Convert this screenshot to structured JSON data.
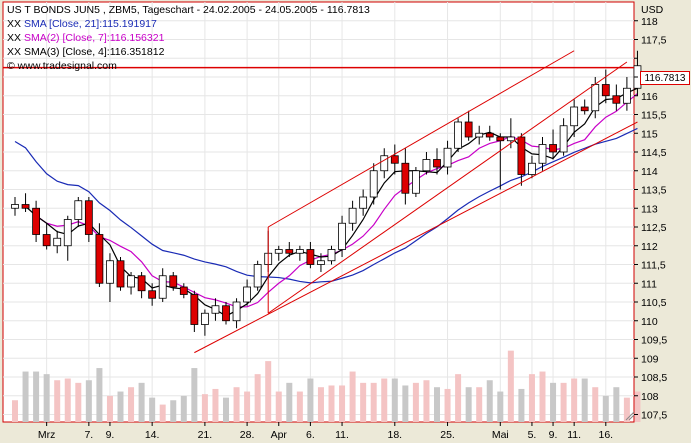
{
  "header": {
    "title": "US T BONDS JUN5 , ZBM5, Tageschart - 24.02.2005 - 24.05.2005 - 116.7813",
    "currency": "USD",
    "last_price": "116.7813",
    "sma_lines": [
      {
        "prefix": "XX",
        "text": "SMA [Close, 21]:115.191917",
        "color": "#1a2bb5"
      },
      {
        "prefix": "XX",
        "text": "SMA(2) [Close, 7]:116.156321",
        "color": "#c800c8"
      },
      {
        "prefix": "XX",
        "text": "SMA(3) [Close, 4]:116.351812",
        "color": "#000000"
      }
    ],
    "source": "www.tradesignal.com"
  },
  "chart_data": {
    "type": "candlestick",
    "ylim": [
      107.3,
      118.5
    ],
    "y_ticks": [
      107.5,
      108,
      108.5,
      109,
      109.5,
      110,
      110.5,
      111,
      111.5,
      112,
      112.5,
      113,
      113.5,
      114,
      114.5,
      115,
      115.5,
      116,
      116.5,
      117,
      117.5,
      118
    ],
    "y_tick_labels": [
      "107,5",
      "108",
      "108,5",
      "109",
      "109,5",
      "110",
      "110,5",
      "111",
      "111,5",
      "112",
      "112,5",
      "113",
      "113,5",
      "114",
      "114,5",
      "115",
      "115,5",
      "116",
      "116,5",
      "117",
      "117,5",
      "118"
    ],
    "x_tick_labels": [
      "Mrz",
      "7.",
      "9.",
      "14.",
      "21.",
      "28.",
      "Apr",
      "6.",
      "11.",
      "18.",
      "25.",
      "Mai",
      "5.",
      "9.",
      "11.",
      "16."
    ],
    "x_tick_index": [
      3,
      7,
      9,
      13,
      18,
      22,
      25,
      28,
      31,
      36,
      41,
      46,
      49,
      51,
      53,
      56
    ],
    "colors": {
      "up": "#ffffff",
      "down": "#dd0000",
      "sma21": "#1a2bb5",
      "sma7": "#c800c8",
      "sma4": "#000000",
      "channel": "#dd0000",
      "vol_up": "#f4c4c4",
      "vol_down": "#c8c8c8"
    },
    "candles": [
      {
        "o": 113.0,
        "h": 113.3,
        "l": 112.8,
        "c": 113.1
      },
      {
        "o": 113.1,
        "h": 113.4,
        "l": 112.9,
        "c": 113.0
      },
      {
        "o": 113.0,
        "h": 113.2,
        "l": 112.1,
        "c": 112.3
      },
      {
        "o": 112.3,
        "h": 112.6,
        "l": 111.9,
        "c": 112.0
      },
      {
        "o": 112.0,
        "h": 112.4,
        "l": 111.8,
        "c": 112.2
      },
      {
        "o": 112.0,
        "h": 112.8,
        "l": 111.6,
        "c": 112.7
      },
      {
        "o": 112.7,
        "h": 113.3,
        "l": 112.5,
        "c": 113.2
      },
      {
        "o": 113.2,
        "h": 113.3,
        "l": 112.1,
        "c": 112.3
      },
      {
        "o": 112.3,
        "h": 112.6,
        "l": 110.9,
        "c": 111.0
      },
      {
        "o": 111.0,
        "h": 111.8,
        "l": 110.5,
        "c": 111.6
      },
      {
        "o": 111.6,
        "h": 111.7,
        "l": 110.8,
        "c": 110.9
      },
      {
        "o": 110.9,
        "h": 111.3,
        "l": 110.7,
        "c": 111.2
      },
      {
        "o": 111.2,
        "h": 111.3,
        "l": 110.6,
        "c": 110.8
      },
      {
        "o": 110.8,
        "h": 111.0,
        "l": 110.4,
        "c": 110.6
      },
      {
        "o": 110.6,
        "h": 111.4,
        "l": 110.5,
        "c": 111.2
      },
      {
        "o": 111.2,
        "h": 111.3,
        "l": 110.8,
        "c": 110.9
      },
      {
        "o": 110.9,
        "h": 111.0,
        "l": 110.6,
        "c": 110.7
      },
      {
        "o": 110.7,
        "h": 110.8,
        "l": 109.7,
        "c": 109.9
      },
      {
        "o": 109.9,
        "h": 110.3,
        "l": 109.6,
        "c": 110.2
      },
      {
        "o": 110.2,
        "h": 110.6,
        "l": 110.0,
        "c": 110.4
      },
      {
        "o": 110.4,
        "h": 110.5,
        "l": 109.9,
        "c": 110.0
      },
      {
        "o": 110.0,
        "h": 110.6,
        "l": 109.8,
        "c": 110.5
      },
      {
        "o": 110.5,
        "h": 111.1,
        "l": 110.4,
        "c": 110.9
      },
      {
        "o": 110.9,
        "h": 111.6,
        "l": 110.8,
        "c": 111.5
      },
      {
        "o": 111.5,
        "h": 112.4,
        "l": 111.3,
        "c": 111.8
      },
      {
        "o": 111.8,
        "h": 112.0,
        "l": 111.6,
        "c": 111.9
      },
      {
        "o": 111.9,
        "h": 112.1,
        "l": 111.7,
        "c": 111.8
      },
      {
        "o": 111.8,
        "h": 112.0,
        "l": 111.6,
        "c": 111.9
      },
      {
        "o": 111.9,
        "h": 112.1,
        "l": 111.4,
        "c": 111.5
      },
      {
        "o": 111.5,
        "h": 111.8,
        "l": 111.3,
        "c": 111.6
      },
      {
        "o": 111.6,
        "h": 112.0,
        "l": 111.5,
        "c": 111.9
      },
      {
        "o": 111.9,
        "h": 112.8,
        "l": 111.7,
        "c": 112.6
      },
      {
        "o": 112.6,
        "h": 113.2,
        "l": 112.4,
        "c": 113.0
      },
      {
        "o": 113.0,
        "h": 113.5,
        "l": 112.8,
        "c": 113.3
      },
      {
        "o": 113.3,
        "h": 114.2,
        "l": 113.1,
        "c": 114.0
      },
      {
        "o": 114.0,
        "h": 114.6,
        "l": 113.8,
        "c": 114.4
      },
      {
        "o": 114.4,
        "h": 114.7,
        "l": 113.9,
        "c": 114.2
      },
      {
        "o": 114.2,
        "h": 114.6,
        "l": 113.1,
        "c": 113.4
      },
      {
        "o": 113.4,
        "h": 114.1,
        "l": 113.3,
        "c": 114.0
      },
      {
        "o": 114.0,
        "h": 114.5,
        "l": 113.9,
        "c": 114.3
      },
      {
        "o": 114.3,
        "h": 114.6,
        "l": 113.9,
        "c": 114.1
      },
      {
        "o": 114.1,
        "h": 114.8,
        "l": 113.9,
        "c": 114.6
      },
      {
        "o": 114.6,
        "h": 115.4,
        "l": 114.5,
        "c": 115.3
      },
      {
        "o": 115.3,
        "h": 115.6,
        "l": 114.8,
        "c": 114.9
      },
      {
        "o": 114.9,
        "h": 115.2,
        "l": 114.7,
        "c": 115.0
      },
      {
        "o": 115.0,
        "h": 115.2,
        "l": 114.8,
        "c": 114.9
      },
      {
        "o": 114.9,
        "h": 115.0,
        "l": 113.5,
        "c": 114.8
      },
      {
        "o": 114.8,
        "h": 115.4,
        "l": 114.6,
        "c": 114.9
      },
      {
        "o": 114.9,
        "h": 115.0,
        "l": 113.6,
        "c": 113.9
      },
      {
        "o": 113.9,
        "h": 114.4,
        "l": 113.8,
        "c": 114.2
      },
      {
        "o": 114.2,
        "h": 114.9,
        "l": 114.0,
        "c": 114.7
      },
      {
        "o": 114.7,
        "h": 115.1,
        "l": 114.3,
        "c": 114.5
      },
      {
        "o": 114.5,
        "h": 115.4,
        "l": 114.4,
        "c": 115.2
      },
      {
        "o": 115.2,
        "h": 115.9,
        "l": 114.9,
        "c": 115.7
      },
      {
        "o": 115.7,
        "h": 115.9,
        "l": 115.5,
        "c": 115.6
      },
      {
        "o": 115.6,
        "h": 116.5,
        "l": 115.4,
        "c": 116.3
      },
      {
        "o": 116.3,
        "h": 116.7,
        "l": 115.8,
        "c": 116.0
      },
      {
        "o": 116.0,
        "h": 116.3,
        "l": 115.6,
        "c": 115.8
      },
      {
        "o": 115.8,
        "h": 116.5,
        "l": 115.6,
        "c": 116.2
      },
      {
        "o": 116.2,
        "h": 117.2,
        "l": 116.0,
        "c": 116.8
      }
    ],
    "volume": [
      0.25,
      0.58,
      0.58,
      0.55,
      0.48,
      0.5,
      0.45,
      0.48,
      0.62,
      0.3,
      0.35,
      0.4,
      0.45,
      0.28,
      0.2,
      0.25,
      0.3,
      0.62,
      0.32,
      0.38,
      0.28,
      0.4,
      0.35,
      0.55,
      0.7,
      0.35,
      0.45,
      0.35,
      0.5,
      0.4,
      0.42,
      0.42,
      0.58,
      0.45,
      0.45,
      0.5,
      0.5,
      0.42,
      0.45,
      0.48,
      0.4,
      0.38,
      0.55,
      0.4,
      0.4,
      0.48,
      0.35,
      0.82,
      0.38,
      0.55,
      0.58,
      0.45,
      0.45,
      0.5,
      0.5,
      0.4,
      0.3,
      0.4,
      0.28,
      0.35
    ],
    "trendlines": [
      {
        "from": [
          17,
          109.15
        ],
        "to": [
          59,
          115.3
        ]
      },
      {
        "from": [
          24,
          112.5
        ],
        "to": [
          53,
          117.2
        ]
      },
      {
        "from": [
          24,
          110.2
        ],
        "to": [
          58,
          116.9
        ]
      },
      {
        "from": [
          0,
          116.75
        ],
        "to": [
          59,
          116.75
        ]
      }
    ]
  }
}
